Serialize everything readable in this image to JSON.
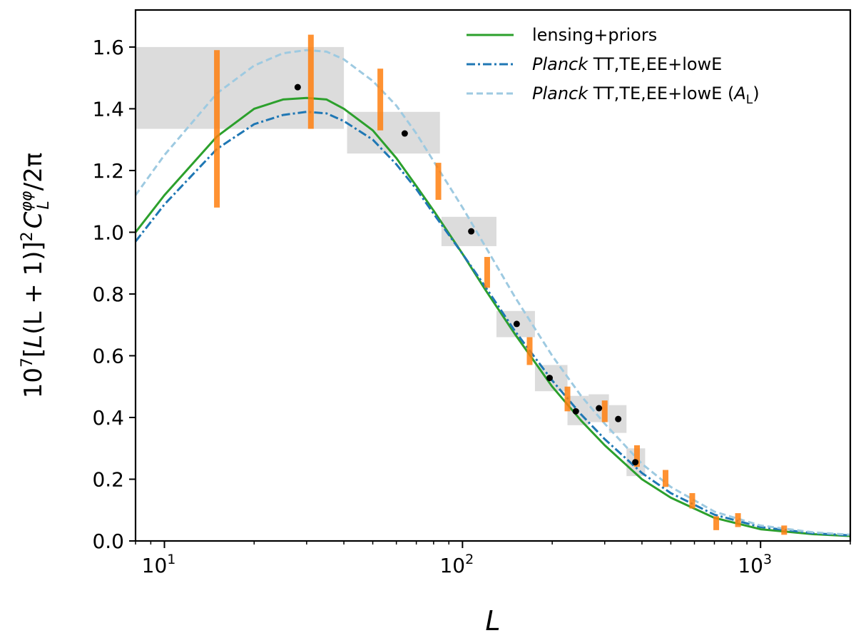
{
  "chart_data": {
    "type": "line",
    "title": "",
    "xscale": "log",
    "xlim": [
      8,
      2000
    ],
    "ylim": [
      0,
      1.72
    ],
    "xlabel": "L",
    "ylabel": {
      "prefix": "10",
      "prefix_sup": "7",
      "bracket_open": "[",
      "var": "L",
      "paren_open": "(",
      "inner": "L + 1",
      "paren_close": ")",
      "bracket_close": "]",
      "bracket_sup": "2",
      "cl": "C",
      "cl_sub": "L",
      "cl_sup": "φφ",
      "tail": "/2π"
    },
    "yticks": [
      {
        "value": 0.0,
        "label": "0.0"
      },
      {
        "value": 0.2,
        "label": "0.2"
      },
      {
        "value": 0.4,
        "label": "0.4"
      },
      {
        "value": 0.6,
        "label": "0.6"
      },
      {
        "value": 0.8,
        "label": "0.8"
      },
      {
        "value": 1.0,
        "label": "1.0"
      },
      {
        "value": 1.2,
        "label": "1.2"
      },
      {
        "value": 1.4,
        "label": "1.4"
      },
      {
        "value": 1.6,
        "label": "1.6"
      }
    ],
    "xticks": [
      {
        "value": 10,
        "base": "10",
        "exp": "1"
      },
      {
        "value": 100,
        "base": "10",
        "exp": "2"
      },
      {
        "value": 1000,
        "base": "10",
        "exp": "3"
      }
    ],
    "legend": {
      "position": "top-right",
      "entries": [
        {
          "key": "lensing",
          "italic": "",
          "text": "lensing+priors",
          "math_open": "",
          "math_var": "",
          "math_sub": "",
          "math_close": ""
        },
        {
          "key": "planck",
          "italic": "Planck",
          "text": " TT,TE,EE+lowE",
          "math_open": "",
          "math_var": "",
          "math_sub": "",
          "math_close": ""
        },
        {
          "key": "planckAL",
          "italic": "Planck",
          "text": " TT,TE,EE+lowE (",
          "math_open": "",
          "math_var": "A",
          "math_sub": "L",
          "math_close": ")"
        }
      ]
    },
    "series": [
      {
        "name": "lensing+priors",
        "key": "lensing",
        "color": "#2ca02c",
        "dash": "solid",
        "x": [
          8,
          10,
          15,
          20,
          25,
          30,
          35,
          40,
          50,
          60,
          70,
          80,
          100,
          120,
          150,
          200,
          250,
          300,
          400,
          500,
          700,
          1000,
          1500,
          2000
        ],
        "y": [
          1.0,
          1.12,
          1.31,
          1.4,
          1.43,
          1.435,
          1.43,
          1.4,
          1.33,
          1.24,
          1.15,
          1.07,
          0.93,
          0.81,
          0.67,
          0.5,
          0.39,
          0.31,
          0.2,
          0.14,
          0.075,
          0.038,
          0.022,
          0.016
        ]
      },
      {
        "name": "Planck TT,TE,EE+lowE",
        "key": "planck",
        "color": "#1f77b4",
        "dash": "dashdot",
        "x": [
          8,
          10,
          15,
          20,
          25,
          30,
          35,
          40,
          50,
          60,
          70,
          80,
          100,
          120,
          150,
          200,
          250,
          300,
          400,
          500,
          700,
          1000,
          1500,
          2000
        ],
        "y": [
          0.97,
          1.09,
          1.27,
          1.35,
          1.38,
          1.39,
          1.385,
          1.36,
          1.3,
          1.22,
          1.14,
          1.06,
          0.93,
          0.82,
          0.68,
          0.52,
          0.41,
          0.33,
          0.22,
          0.155,
          0.085,
          0.045,
          0.025,
          0.018
        ]
      },
      {
        "name": "Planck TT,TE,EE+lowE (A_L)",
        "key": "planckAL",
        "color": "#9ecae1",
        "dash": "dashed",
        "x": [
          8,
          10,
          15,
          20,
          25,
          30,
          35,
          40,
          50,
          60,
          70,
          80,
          100,
          120,
          150,
          200,
          250,
          300,
          400,
          500,
          700,
          1000,
          1500,
          2000
        ],
        "y": [
          1.12,
          1.25,
          1.45,
          1.54,
          1.58,
          1.59,
          1.585,
          1.56,
          1.49,
          1.41,
          1.32,
          1.23,
          1.08,
          0.95,
          0.79,
          0.6,
          0.47,
          0.38,
          0.25,
          0.175,
          0.095,
          0.05,
          0.028,
          0.02
        ]
      }
    ],
    "bin_boxes": [
      {
        "xmin": 8,
        "xmax": 40,
        "ymin": 1.335,
        "ymax": 1.6
      },
      {
        "xmin": 41,
        "xmax": 84,
        "ymin": 1.255,
        "ymax": 1.39
      },
      {
        "xmin": 85,
        "xmax": 130,
        "ymin": 0.955,
        "ymax": 1.05
      },
      {
        "xmin": 130,
        "xmax": 175,
        "ymin": 0.66,
        "ymax": 0.745
      },
      {
        "xmin": 175,
        "xmax": 225,
        "ymin": 0.485,
        "ymax": 0.57
      },
      {
        "xmin": 225,
        "xmax": 265,
        "ymin": 0.375,
        "ymax": 0.47
      },
      {
        "xmin": 265,
        "xmax": 310,
        "ymin": 0.385,
        "ymax": 0.475
      },
      {
        "xmin": 310,
        "xmax": 355,
        "ymin": 0.35,
        "ymax": 0.44
      },
      {
        "xmin": 355,
        "xmax": 410,
        "ymin": 0.21,
        "ymax": 0.3
      }
    ],
    "black_points": [
      {
        "x": 28,
        "y": 1.47
      },
      {
        "x": 64,
        "y": 1.32
      },
      {
        "x": 107,
        "y": 1.003
      },
      {
        "x": 152,
        "y": 0.703
      },
      {
        "x": 196,
        "y": 0.528
      },
      {
        "x": 240,
        "y": 0.42
      },
      {
        "x": 287,
        "y": 0.43
      },
      {
        "x": 333,
        "y": 0.395
      },
      {
        "x": 380,
        "y": 0.255
      }
    ],
    "orange_errorbars": [
      {
        "x": 15,
        "low": 1.08,
        "high": 1.59
      },
      {
        "x": 31,
        "low": 1.335,
        "high": 1.64
      },
      {
        "x": 53,
        "low": 1.33,
        "high": 1.53
      },
      {
        "x": 83,
        "low": 1.105,
        "high": 1.225
      },
      {
        "x": 121,
        "low": 0.82,
        "high": 0.92
      },
      {
        "x": 168,
        "low": 0.57,
        "high": 0.66
      },
      {
        "x": 225,
        "low": 0.42,
        "high": 0.5
      },
      {
        "x": 300,
        "low": 0.385,
        "high": 0.455
      },
      {
        "x": 385,
        "low": 0.24,
        "high": 0.31
      },
      {
        "x": 480,
        "low": 0.175,
        "high": 0.23
      },
      {
        "x": 590,
        "low": 0.105,
        "high": 0.155
      },
      {
        "x": 710,
        "low": 0.035,
        "high": 0.08
      },
      {
        "x": 840,
        "low": 0.045,
        "high": 0.09
      },
      {
        "x": 1200,
        "low": 0.02,
        "high": 0.05
      }
    ],
    "colors": {
      "orange": "#ff7f0e",
      "box": "#dcdcdc",
      "point": "#000000",
      "axis": "#000000"
    }
  }
}
